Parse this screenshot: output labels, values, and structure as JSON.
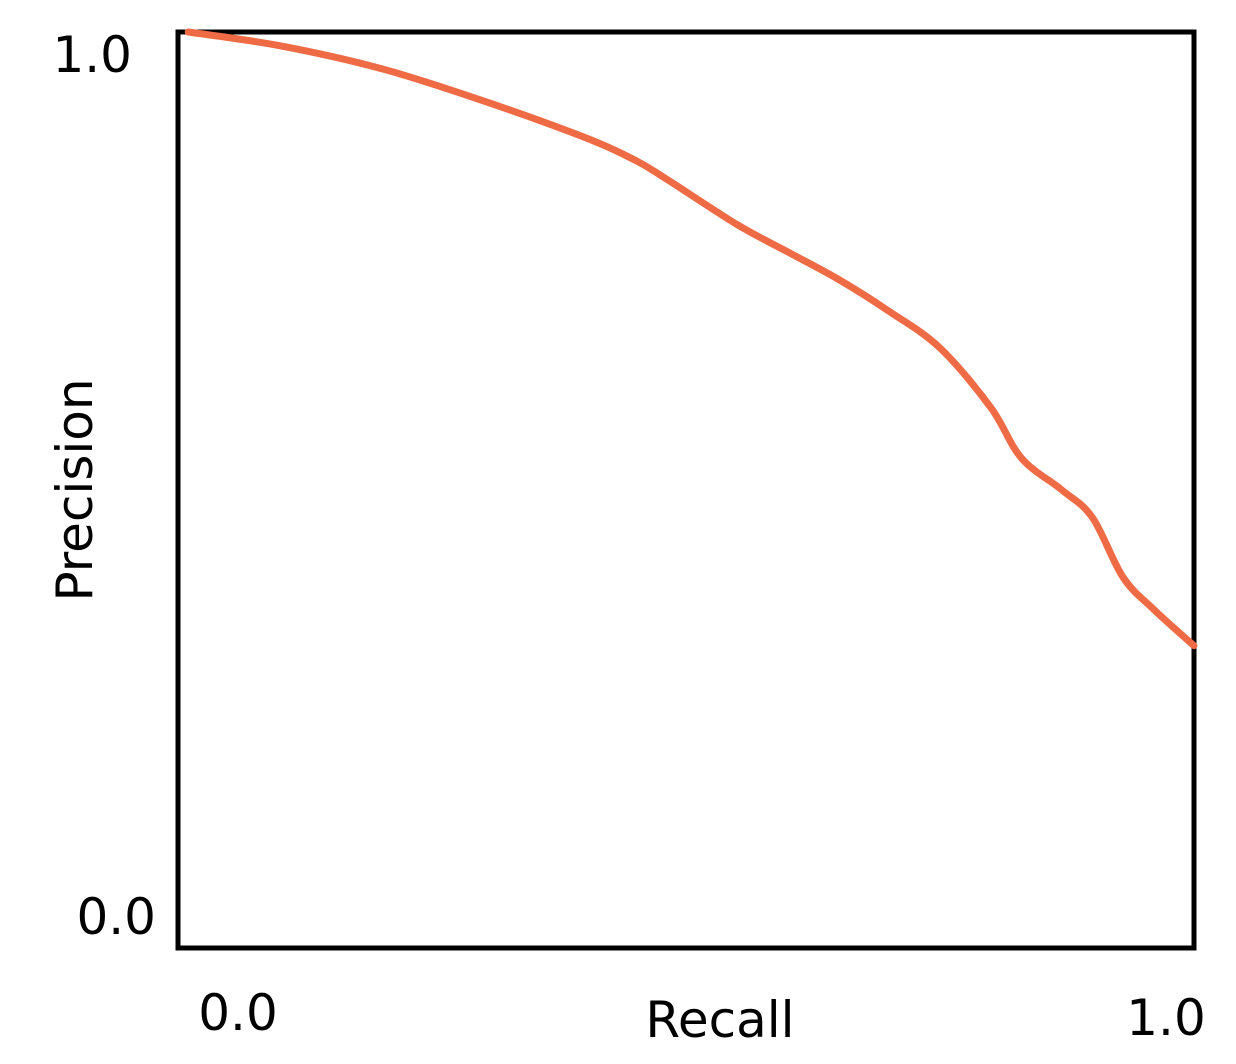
{
  "chart_data": {
    "type": "line",
    "title": "",
    "xlabel": "Recall",
    "ylabel": "Precision",
    "xlim": [
      0,
      1
    ],
    "ylim": [
      0,
      1
    ],
    "x_ticks": [
      "0.0",
      "1.0"
    ],
    "y_ticks": [
      "0.0",
      "1.0"
    ],
    "grid": false,
    "legend": "none",
    "series": [
      {
        "color": "#EE6B45",
        "x": [
          0.01,
          0.1,
          0.2,
          0.3,
          0.4,
          0.45,
          0.48,
          0.55,
          0.6,
          0.65,
          0.7,
          0.75,
          0.8,
          0.83,
          0.87,
          0.9,
          0.93,
          0.96,
          1.0
        ],
        "y": [
          1.0,
          0.985,
          0.96,
          0.925,
          0.885,
          0.86,
          0.84,
          0.79,
          0.76,
          0.73,
          0.695,
          0.655,
          0.59,
          0.535,
          0.5,
          0.47,
          0.405,
          0.37,
          0.33
        ]
      }
    ]
  }
}
